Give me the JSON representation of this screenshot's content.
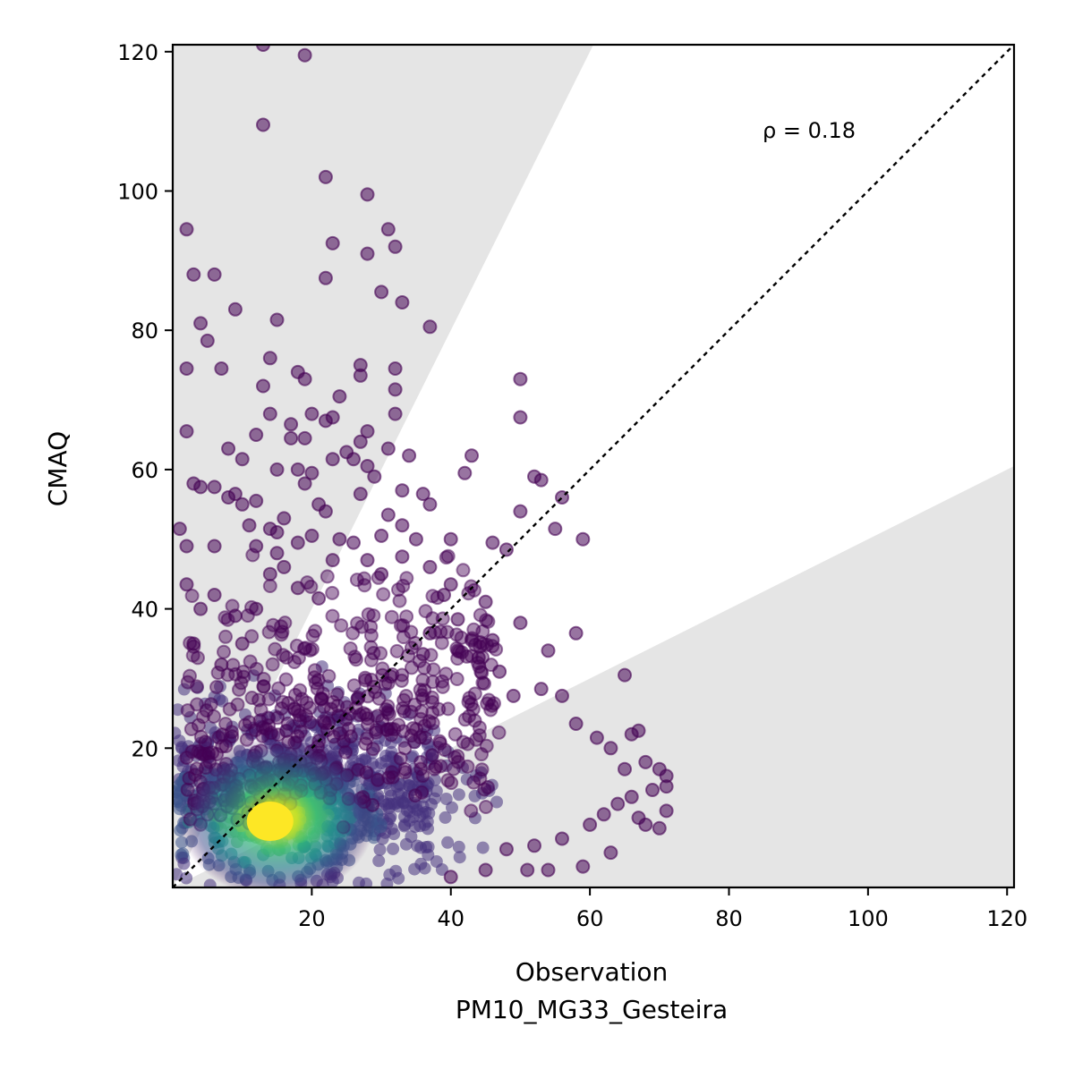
{
  "chart_data": {
    "type": "scatter",
    "title": "",
    "xlabel": "Observation",
    "xlabel_sub": "PM10_MG33_Gesteira",
    "ylabel": "CMAQ",
    "xlim": [
      0,
      121
    ],
    "ylim": [
      0,
      121
    ],
    "x_ticks": [
      20,
      40,
      60,
      80,
      100,
      120
    ],
    "y_ticks": [
      20,
      40,
      60,
      80,
      100,
      120
    ],
    "grid": false,
    "legend": "none",
    "annotation": "ρ = 0.18",
    "reference_line": {
      "type": "1:1",
      "style": "dotted",
      "color": "#000000"
    },
    "shaded_regions": [
      {
        "description": "model > 2x observation",
        "slope_from": 2,
        "color": "#e5e5e5"
      },
      {
        "description": "model < 0.5x observation",
        "slope_to": 0.5,
        "color": "#e5e5e5"
      }
    ],
    "colormap": "viridis",
    "color_encoding": "point density",
    "density_center": {
      "x": 14,
      "y": 10
    },
    "points_outer": [
      [
        13,
        121
      ],
      [
        19,
        119.5
      ],
      [
        13,
        109.5
      ],
      [
        22,
        102
      ],
      [
        28,
        99.5
      ],
      [
        31,
        94.5
      ],
      [
        2,
        94.5
      ],
      [
        23,
        92.5
      ],
      [
        32,
        92
      ],
      [
        28,
        91
      ],
      [
        3,
        88
      ],
      [
        6,
        88
      ],
      [
        22,
        87.5
      ],
      [
        30,
        85.5
      ],
      [
        33,
        84
      ],
      [
        9,
        83
      ],
      [
        15,
        81.5
      ],
      [
        4,
        81
      ],
      [
        37,
        80.5
      ],
      [
        5,
        78.5
      ],
      [
        14,
        76
      ],
      [
        27,
        75
      ],
      [
        2,
        74.5
      ],
      [
        7,
        74.5
      ],
      [
        32,
        74.5
      ],
      [
        18,
        74
      ],
      [
        27,
        73.5
      ],
      [
        19,
        73
      ],
      [
        50,
        73
      ],
      [
        13,
        72
      ],
      [
        32,
        71.5
      ],
      [
        24,
        70.5
      ],
      [
        14,
        68
      ],
      [
        20,
        68
      ],
      [
        22,
        67
      ],
      [
        23,
        67.5
      ],
      [
        32,
        68
      ],
      [
        50,
        67.5
      ],
      [
        17,
        66.5
      ],
      [
        28,
        65.5
      ],
      [
        2,
        65.5
      ],
      [
        12,
        65
      ],
      [
        17,
        64.5
      ],
      [
        19,
        64.5
      ],
      [
        27,
        64
      ],
      [
        8,
        63
      ],
      [
        31,
        63
      ],
      [
        25,
        62.5
      ],
      [
        43,
        62
      ],
      [
        10,
        61.5
      ],
      [
        23,
        61.5
      ],
      [
        26,
        61.5
      ],
      [
        34,
        62
      ],
      [
        28,
        60.5
      ],
      [
        15,
        60
      ],
      [
        18,
        60
      ],
      [
        20,
        59.5
      ],
      [
        29,
        59
      ],
      [
        42,
        59.5
      ],
      [
        52,
        59
      ],
      [
        53,
        58.5
      ],
      [
        3,
        58
      ],
      [
        4,
        57.5
      ],
      [
        6,
        57.5
      ],
      [
        19,
        58
      ],
      [
        33,
        57
      ],
      [
        36,
        56.5
      ],
      [
        9,
        56.5
      ],
      [
        27,
        56.5
      ],
      [
        8,
        56
      ],
      [
        56,
        56
      ],
      [
        12,
        55.5
      ],
      [
        10,
        55
      ],
      [
        21,
        55
      ],
      [
        37,
        55
      ],
      [
        22,
        54
      ],
      [
        50,
        54
      ],
      [
        31,
        53.5
      ],
      [
        16,
        53
      ],
      [
        33,
        52
      ],
      [
        11,
        52
      ],
      [
        14,
        51.5
      ],
      [
        15,
        51
      ],
      [
        1,
        51.5
      ],
      [
        55,
        51.5
      ],
      [
        30,
        50.5
      ],
      [
        20,
        50.5
      ],
      [
        24,
        50
      ],
      [
        35,
        50
      ],
      [
        40,
        50
      ],
      [
        18,
        49.5
      ],
      [
        46,
        49.5
      ],
      [
        59,
        50
      ],
      [
        6,
        49
      ],
      [
        12,
        49
      ],
      [
        26,
        49.5
      ],
      [
        48,
        48.5
      ],
      [
        2,
        49
      ],
      [
        15,
        48
      ],
      [
        33,
        47.5
      ],
      [
        28,
        47
      ],
      [
        23,
        47
      ],
      [
        37,
        46
      ],
      [
        16,
        46
      ],
      [
        30,
        45
      ],
      [
        14,
        45
      ],
      [
        40,
        43.5
      ],
      [
        18,
        43
      ],
      [
        39,
        42
      ],
      [
        2,
        43.5
      ],
      [
        6,
        42
      ],
      [
        21,
        41.5
      ],
      [
        45,
        41
      ],
      [
        4,
        40
      ],
      [
        12,
        40
      ],
      [
        41,
        38.5
      ],
      [
        9,
        39
      ],
      [
        50,
        38
      ],
      [
        37,
        36.5
      ],
      [
        43,
        35.5
      ],
      [
        46,
        35.5
      ],
      [
        58,
        36.5
      ],
      [
        3,
        35
      ],
      [
        10,
        35
      ],
      [
        54,
        34
      ],
      [
        36,
        33.5
      ],
      [
        44,
        33
      ],
      [
        7,
        32
      ],
      [
        47,
        31
      ],
      [
        53,
        28.5
      ],
      [
        49,
        27.5
      ],
      [
        56,
        27.5
      ],
      [
        65,
        30.5
      ],
      [
        58,
        23.5
      ],
      [
        66,
        22
      ],
      [
        67,
        22.5
      ],
      [
        61,
        21.5
      ],
      [
        63,
        20
      ],
      [
        65,
        17
      ],
      [
        68,
        18
      ],
      [
        70,
        17
      ],
      [
        71,
        16
      ],
      [
        71,
        14.5
      ],
      [
        69,
        14
      ],
      [
        66,
        13
      ],
      [
        64,
        12
      ],
      [
        71,
        11
      ],
      [
        62,
        10.5
      ],
      [
        67,
        10
      ],
      [
        68,
        9
      ],
      [
        70,
        8.5
      ],
      [
        60,
        9
      ],
      [
        56,
        7
      ],
      [
        52,
        6
      ],
      [
        48,
        5.5
      ],
      [
        63,
        5
      ],
      [
        59,
        3
      ],
      [
        54,
        2.5
      ],
      [
        51,
        2.5
      ],
      [
        45,
        2.5
      ],
      [
        40,
        1.5
      ]
    ]
  }
}
